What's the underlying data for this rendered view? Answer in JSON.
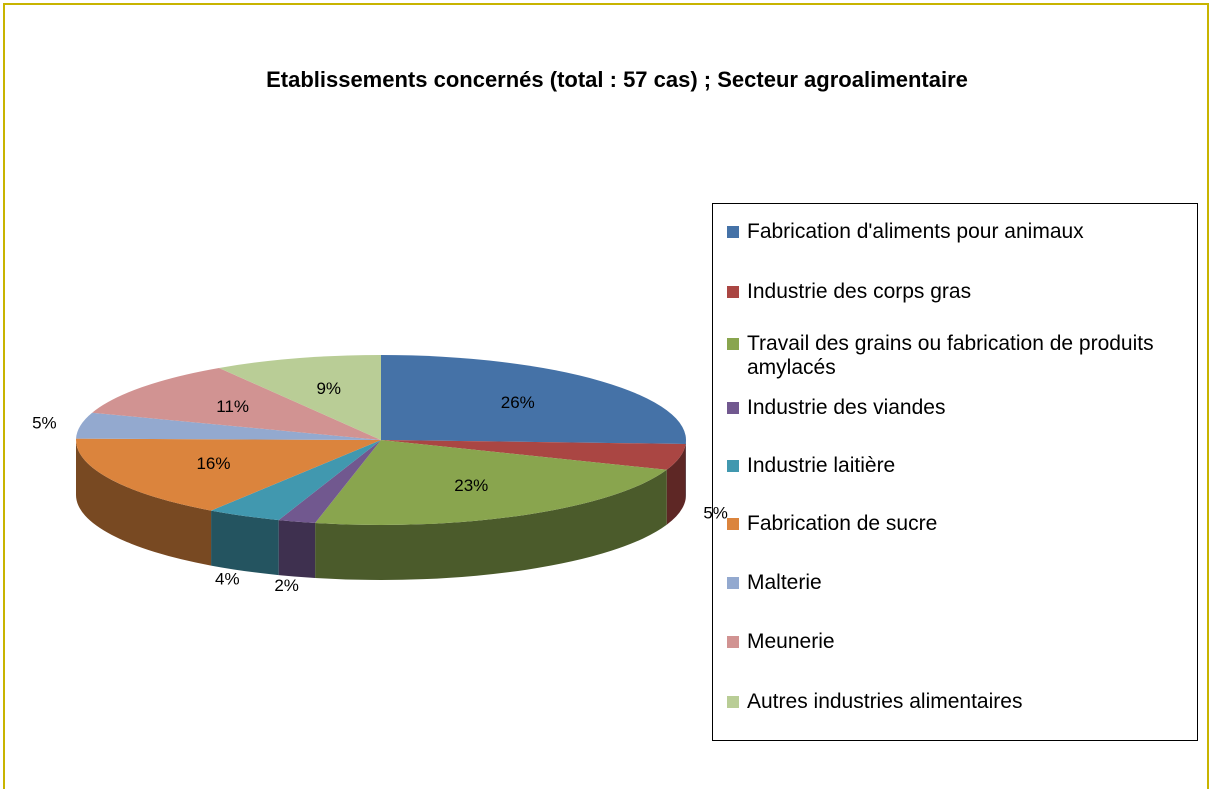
{
  "chart_data": {
    "type": "pie",
    "title": "Etablissements concernés (total : 57 cas) ; Secteur agroalimentaire",
    "categories": [
      "Fabrication d'aliments pour animaux",
      "Industrie des corps gras",
      "Travail des grains ou fabrication de produits amylacés",
      "Industrie des viandes",
      "Industrie laitière",
      "Fabrication de sucre",
      "Malterie",
      "Meunerie",
      "Autres industries alimentaires"
    ],
    "values": [
      26,
      5,
      23,
      2,
      4,
      16,
      5,
      11,
      9
    ],
    "value_labels": [
      "26%",
      "5%",
      "23%",
      "2%",
      "4%",
      "16%",
      "5%",
      "11%",
      "9%"
    ],
    "colors": [
      "#4572a7",
      "#aa4643",
      "#89a54e",
      "#71588f",
      "#4198af",
      "#db843d",
      "#93a9cf",
      "#d19392",
      "#b9cd96"
    ],
    "legend": "right"
  }
}
